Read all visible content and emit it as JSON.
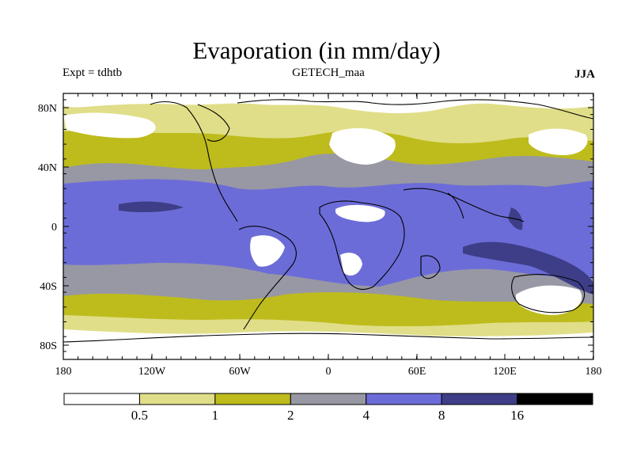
{
  "title": "Evaporation (in mm/day)",
  "experiment": "Expt = tdhtb",
  "model": "GETECH_maa",
  "season": "JJA",
  "lat_ticks": [
    "80N",
    "40N",
    "0",
    "40S",
    "80S"
  ],
  "lon_ticks": [
    "180",
    "120W",
    "60W",
    "0",
    "60E",
    "120E",
    "180"
  ],
  "legend": {
    "labels": [
      "0.5",
      "1",
      "2",
      "4",
      "8",
      "16"
    ],
    "colors": [
      "#ffffff",
      "#e0de88",
      "#bebc1c",
      "#9898a4",
      "#6c6cd8",
      "#3e3e88",
      "#000000"
    ]
  },
  "colors": {
    "bg": "#9898a4",
    "band_ocean": "#6c6cd8",
    "dark": "#3e3e88",
    "yellow": "#bebc1c",
    "pale": "#e0de88",
    "white": "#ffffff",
    "coast": "#000000"
  }
}
